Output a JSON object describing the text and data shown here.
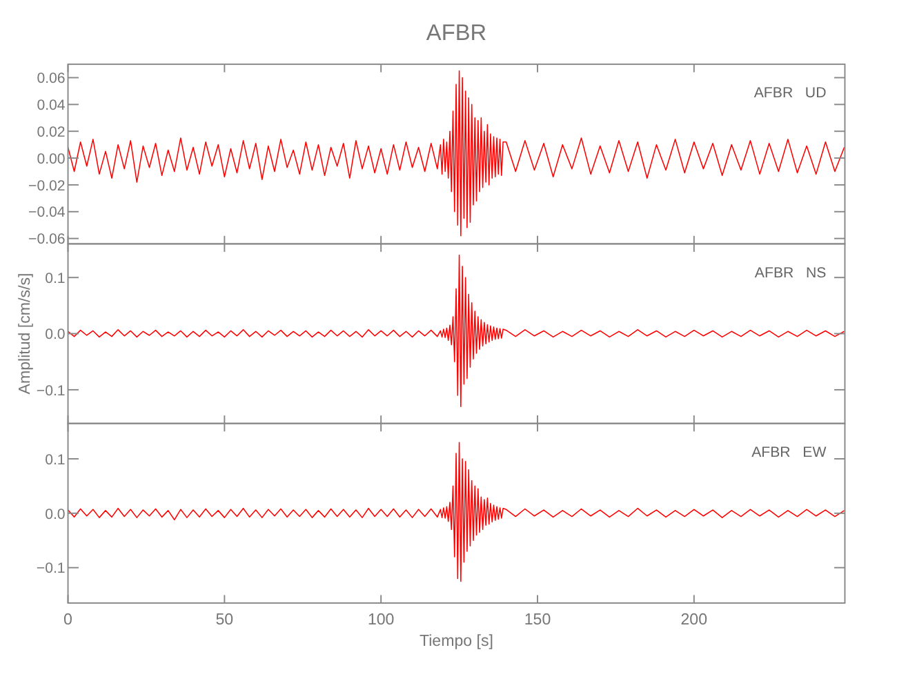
{
  "chart_data": [
    {
      "type": "line",
      "title": "AFBR",
      "annotations": [
        "AFBR   UD"
      ],
      "tick_labels": "y",
      "xlim": [
        0,
        248.2
      ],
      "xticks": [
        0,
        50,
        100,
        150,
        200
      ],
      "ylim": [
        -0.064,
        0.07
      ],
      "yticks": [
        {
          "value": -0.06,
          "label": "−0.06"
        },
        {
          "value": -0.04,
          "label": "−0.04"
        },
        {
          "value": -0.02,
          "label": "−0.02"
        },
        {
          "value": 0,
          "label": "0.00"
        },
        {
          "value": 0.02,
          "label": "0.02"
        },
        {
          "value": 0.04,
          "label": "0.04"
        },
        {
          "value": 0.06,
          "label": "0.06"
        }
      ],
      "x": [
        0,
        2,
        4,
        6,
        8,
        10,
        12,
        14,
        16,
        18,
        20,
        22,
        24,
        26,
        28,
        30,
        32,
        34,
        36,
        38,
        40,
        42,
        44,
        46,
        48,
        50,
        52,
        54,
        56,
        58,
        60,
        62,
        64,
        66,
        68,
        70,
        72,
        74,
        76,
        78,
        80,
        82,
        84,
        86,
        88,
        90,
        92,
        94,
        96,
        98,
        100,
        102,
        104,
        106,
        108,
        110,
        112,
        114,
        116,
        118,
        119,
        119.5,
        120,
        120.5,
        121,
        121.5,
        122,
        122.5,
        123,
        123.5,
        124,
        124.5,
        125,
        125.5,
        126,
        126.5,
        127,
        127.5,
        128,
        128.5,
        129,
        129.5,
        130,
        130.5,
        131,
        131.5,
        132,
        132.5,
        133,
        133.5,
        134,
        134.5,
        135,
        135.5,
        136,
        136.5,
        137,
        137.5,
        138,
        138.5,
        139,
        140,
        143,
        146,
        149,
        152,
        155,
        158,
        161,
        164,
        167,
        170,
        173,
        176,
        179,
        182,
        185,
        188,
        191,
        194,
        197,
        200,
        203,
        206,
        209,
        212,
        215,
        218,
        221,
        224,
        227,
        230,
        233,
        236,
        239,
        242,
        245,
        248
      ],
      "series": [
        {
          "color": "#ff0000",
          "values": [
            0.008,
            -0.01,
            0.012,
            -0.006,
            0.014,
            -0.012,
            0.005,
            -0.015,
            0.01,
            -0.008,
            0.013,
            -0.018,
            0.009,
            -0.007,
            0.011,
            -0.013,
            0.006,
            -0.01,
            0.015,
            -0.009,
            0.008,
            -0.012,
            0.012,
            -0.006,
            0.01,
            -0.014,
            0.007,
            -0.011,
            0.013,
            -0.008,
            0.011,
            -0.016,
            0.009,
            -0.01,
            0.014,
            -0.007,
            0.006,
            -0.012,
            0.012,
            -0.009,
            0.01,
            -0.013,
            0.008,
            -0.006,
            0.011,
            -0.015,
            0.013,
            -0.008,
            0.009,
            -0.011,
            0.007,
            -0.012,
            0.01,
            -0.009,
            0.012,
            -0.007,
            0.008,
            -0.01,
            0.011,
            -0.008,
            0.01,
            -0.012,
            0.014,
            -0.01,
            0.012,
            -0.015,
            0.02,
            -0.025,
            0.035,
            -0.04,
            0.055,
            -0.05,
            0.065,
            -0.058,
            0.06,
            -0.045,
            0.05,
            -0.052,
            0.045,
            -0.048,
            0.04,
            -0.035,
            0.03,
            -0.032,
            0.028,
            -0.025,
            0.03,
            -0.022,
            0.02,
            -0.018,
            0.025,
            -0.02,
            0.018,
            -0.015,
            0.016,
            -0.014,
            0.015,
            -0.012,
            0.014,
            -0.013,
            0.012,
            0.012,
            -0.01,
            0.013,
            -0.009,
            0.011,
            -0.014,
            0.01,
            -0.008,
            0.015,
            -0.012,
            0.009,
            -0.011,
            0.013,
            -0.01,
            0.012,
            -0.015,
            0.01,
            -0.009,
            0.014,
            -0.011,
            0.012,
            -0.008,
            0.011,
            -0.013,
            0.01,
            -0.009,
            0.013,
            -0.012,
            0.011,
            -0.01,
            0.014,
            -0.011,
            0.009,
            -0.012,
            0.012,
            -0.01,
            0.008
          ]
        }
      ]
    },
    {
      "type": "line",
      "ylabel": "Amplitud [cm/s/s]",
      "annotations": [
        "AFBR   NS"
      ],
      "tick_labels": "y",
      "xlim": [
        0,
        248.2
      ],
      "xticks": [
        0,
        50,
        100,
        150,
        200
      ],
      "ylim": [
        -0.16,
        0.16
      ],
      "yticks": [
        {
          "value": -0.1,
          "label": "−0.1"
        },
        {
          "value": 0,
          "label": "0.0"
        },
        0.1
      ],
      "x": [
        0,
        2,
        4,
        6,
        8,
        10,
        12,
        14,
        16,
        18,
        20,
        22,
        24,
        26,
        28,
        30,
        32,
        34,
        36,
        38,
        40,
        42,
        44,
        46,
        48,
        50,
        52,
        54,
        56,
        58,
        60,
        62,
        64,
        66,
        68,
        70,
        72,
        74,
        76,
        78,
        80,
        82,
        84,
        86,
        88,
        90,
        92,
        94,
        96,
        98,
        100,
        102,
        104,
        106,
        108,
        110,
        112,
        114,
        116,
        118,
        119,
        119.5,
        120,
        120.5,
        121,
        121.5,
        122,
        122.5,
        123,
        123.5,
        124,
        124.5,
        125,
        125.5,
        126,
        126.5,
        127,
        127.5,
        128,
        128.5,
        129,
        129.5,
        130,
        130.5,
        131,
        131.5,
        132,
        132.5,
        133,
        133.5,
        134,
        134.5,
        135,
        135.5,
        136,
        136.5,
        137,
        137.5,
        138,
        138.5,
        139,
        140,
        143,
        146,
        149,
        152,
        155,
        158,
        161,
        164,
        167,
        170,
        173,
        176,
        179,
        182,
        185,
        188,
        191,
        194,
        197,
        200,
        203,
        206,
        209,
        212,
        215,
        218,
        221,
        224,
        227,
        230,
        233,
        236,
        239,
        242,
        245,
        248
      ],
      "series": [
        {
          "color": "#ff0000",
          "values": [
            0.004,
            -0.005,
            0.006,
            -0.003,
            0.005,
            -0.006,
            0.003,
            -0.005,
            0.007,
            -0.004,
            0.005,
            -0.006,
            0.004,
            -0.003,
            0.006,
            -0.005,
            0.003,
            -0.004,
            0.005,
            -0.006,
            0.004,
            -0.005,
            0.006,
            -0.004,
            0.003,
            -0.006,
            0.005,
            -0.004,
            0.007,
            -0.005,
            0.004,
            -0.006,
            0.005,
            -0.003,
            0.006,
            -0.005,
            0.004,
            -0.004,
            0.005,
            -0.006,
            0.003,
            -0.005,
            0.006,
            -0.004,
            0.005,
            -0.005,
            0.004,
            -0.006,
            0.007,
            -0.004,
            0.005,
            -0.004,
            0.006,
            -0.005,
            0.004,
            -0.006,
            0.005,
            -0.004,
            0.006,
            -0.005,
            0.005,
            -0.006,
            0.008,
            -0.007,
            0.01,
            -0.012,
            0.015,
            -0.02,
            0.03,
            -0.05,
            0.08,
            -0.11,
            0.14,
            -0.13,
            0.12,
            -0.09,
            0.1,
            -0.08,
            0.07,
            -0.06,
            0.055,
            -0.045,
            0.04,
            -0.035,
            0.03,
            -0.028,
            0.025,
            -0.022,
            0.02,
            -0.018,
            0.016,
            -0.015,
            0.014,
            -0.012,
            0.012,
            -0.01,
            0.01,
            -0.009,
            0.009,
            -0.008,
            0.008,
            0.006,
            -0.005,
            0.007,
            -0.004,
            0.005,
            -0.006,
            0.004,
            -0.005,
            0.006,
            -0.004,
            0.005,
            -0.006,
            0.004,
            -0.005,
            0.007,
            -0.004,
            0.005,
            -0.006,
            0.004,
            -0.005,
            0.006,
            -0.004,
            0.005,
            -0.006,
            0.004,
            -0.005,
            0.006,
            -0.004,
            0.005,
            -0.006,
            0.004,
            -0.005,
            0.006,
            -0.004,
            0.005,
            -0.005,
            0.004
          ]
        }
      ]
    },
    {
      "type": "line",
      "xlabel": "Tiempo [s]",
      "annotations": [
        "AFBR   EW"
      ],
      "xlim": [
        0,
        248.2
      ],
      "xticks": [
        0,
        50,
        100,
        150,
        200
      ],
      "ylim": [
        -0.165,
        0.165
      ],
      "yticks": [
        {
          "value": -0.1,
          "label": "−0.1"
        },
        {
          "value": 0,
          "label": "0.0"
        },
        0.1
      ],
      "x": [
        0,
        2,
        4,
        6,
        8,
        10,
        12,
        14,
        16,
        18,
        20,
        22,
        24,
        26,
        28,
        30,
        32,
        34,
        36,
        38,
        40,
        42,
        44,
        46,
        48,
        50,
        52,
        54,
        56,
        58,
        60,
        62,
        64,
        66,
        68,
        70,
        72,
        74,
        76,
        78,
        80,
        82,
        84,
        86,
        88,
        90,
        92,
        94,
        96,
        98,
        100,
        102,
        104,
        106,
        108,
        110,
        112,
        114,
        116,
        118,
        119,
        119.5,
        120,
        120.5,
        121,
        121.5,
        122,
        122.5,
        123,
        123.5,
        124,
        124.5,
        125,
        125.5,
        126,
        126.5,
        127,
        127.5,
        128,
        128.5,
        129,
        129.5,
        130,
        130.5,
        131,
        131.5,
        132,
        132.5,
        133,
        133.5,
        134,
        134.5,
        135,
        135.5,
        136,
        136.5,
        137,
        137.5,
        138,
        138.5,
        139,
        140,
        143,
        146,
        149,
        152,
        155,
        158,
        161,
        164,
        167,
        170,
        173,
        176,
        179,
        182,
        185,
        188,
        191,
        194,
        197,
        200,
        203,
        206,
        209,
        212,
        215,
        218,
        221,
        224,
        227,
        230,
        233,
        236,
        239,
        242,
        245,
        248
      ],
      "series": [
        {
          "color": "#ff0000",
          "values": [
            0.006,
            -0.007,
            0.008,
            -0.005,
            0.007,
            -0.008,
            0.005,
            -0.007,
            0.009,
            -0.006,
            0.007,
            -0.008,
            0.006,
            -0.005,
            0.008,
            -0.007,
            0.005,
            -0.012,
            0.007,
            -0.008,
            0.006,
            -0.007,
            0.008,
            -0.006,
            0.005,
            -0.008,
            0.007,
            -0.006,
            0.009,
            -0.007,
            0.006,
            -0.008,
            0.007,
            -0.005,
            0.008,
            -0.007,
            0.006,
            -0.006,
            0.007,
            -0.008,
            0.005,
            -0.007,
            0.008,
            -0.006,
            0.007,
            -0.007,
            0.006,
            -0.008,
            0.009,
            -0.006,
            0.007,
            -0.006,
            0.008,
            -0.007,
            0.006,
            -0.008,
            0.007,
            -0.006,
            0.008,
            -0.007,
            0.007,
            -0.008,
            0.01,
            -0.009,
            0.012,
            -0.015,
            0.02,
            -0.03,
            0.05,
            -0.08,
            0.11,
            -0.12,
            0.13,
            -0.125,
            0.1,
            -0.09,
            0.095,
            -0.07,
            0.08,
            -0.06,
            0.06,
            -0.05,
            0.05,
            -0.04,
            0.045,
            -0.035,
            0.03,
            -0.03,
            0.025,
            -0.022,
            0.028,
            -0.02,
            0.018,
            -0.016,
            0.015,
            -0.013,
            0.012,
            -0.011,
            0.01,
            -0.009,
            0.009,
            0.007,
            -0.006,
            0.008,
            -0.005,
            0.006,
            -0.007,
            0.005,
            -0.006,
            0.008,
            -0.005,
            0.006,
            -0.007,
            0.005,
            -0.006,
            0.009,
            -0.005,
            0.006,
            -0.007,
            0.005,
            -0.006,
            0.007,
            -0.005,
            0.006,
            -0.008,
            0.005,
            -0.006,
            0.007,
            -0.005,
            0.006,
            -0.007,
            0.005,
            -0.006,
            0.007,
            -0.005,
            0.006,
            -0.006,
            0.005
          ]
        }
      ]
    }
  ]
}
